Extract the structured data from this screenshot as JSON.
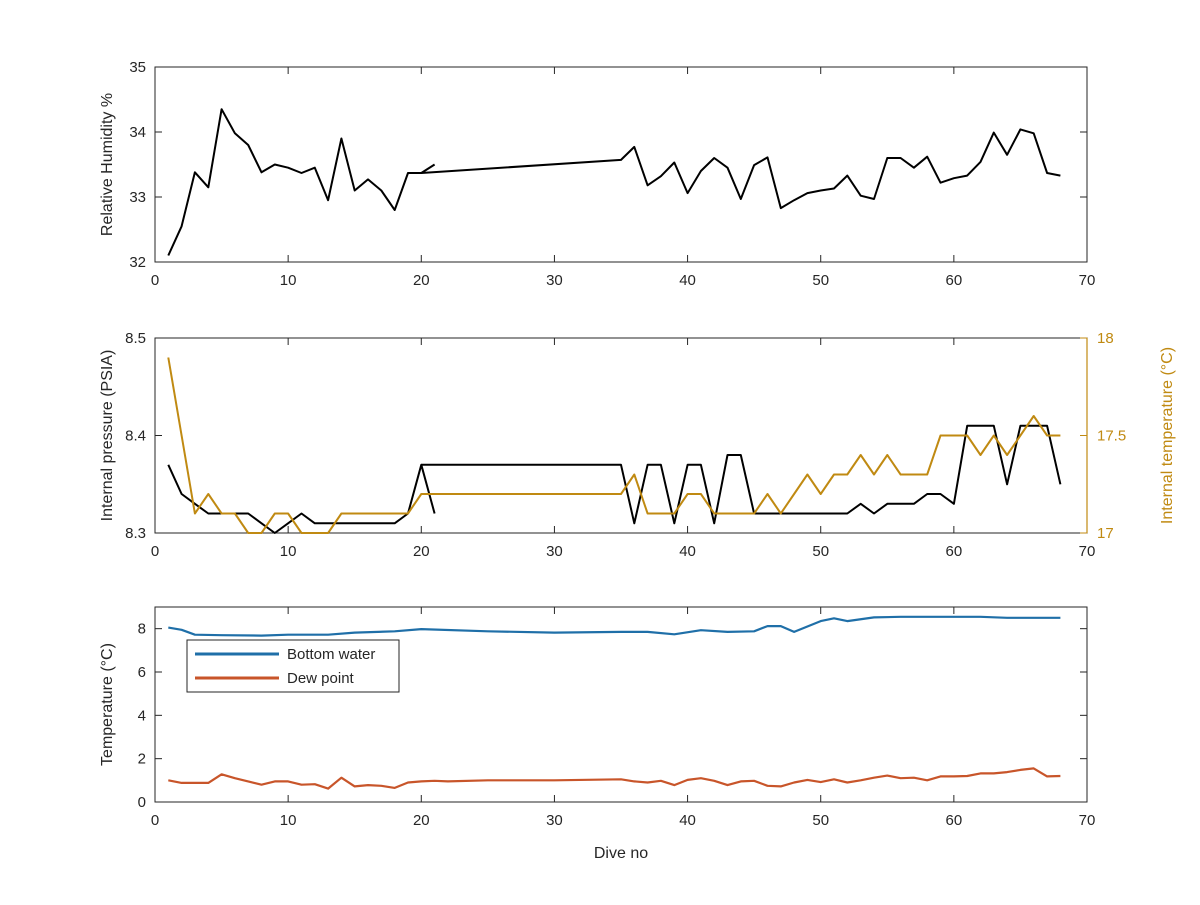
{
  "chart_data": [
    {
      "type": "line",
      "panel": "top",
      "xlabel": "",
      "ylabel": "Relative Humidity %",
      "xlim": [
        0,
        70
      ],
      "ylim": [
        32,
        35
      ],
      "xticks": [
        0,
        10,
        20,
        30,
        40,
        50,
        60,
        70
      ],
      "yticks": [
        32,
        33,
        34,
        35
      ],
      "grid": false,
      "series": [
        {
          "color": "#000000",
          "x": [
            1,
            2,
            3,
            4,
            5,
            6,
            7,
            8,
            9,
            10,
            11,
            12,
            13,
            14,
            15,
            16,
            17,
            18,
            19,
            20,
            21
          ],
          "y": [
            32.1,
            32.55,
            33.38,
            33.15,
            34.35,
            33.98,
            33.8,
            33.38,
            33.5,
            33.45,
            33.37,
            33.45,
            32.95,
            33.9,
            33.1,
            33.27,
            33.1,
            32.8,
            33.37,
            33.37,
            33.5
          ]
        },
        {
          "color": "#000000",
          "x": [
            20,
            35,
            36,
            37,
            38,
            39,
            40,
            41,
            42,
            43,
            44,
            45,
            46,
            47,
            48,
            49,
            50,
            51,
            52,
            53,
            54,
            55,
            56,
            57,
            58,
            59,
            60,
            61,
            62,
            63,
            64,
            65,
            66,
            67,
            68
          ],
          "y": [
            33.37,
            33.57,
            33.77,
            33.18,
            33.32,
            33.53,
            33.06,
            33.4,
            33.6,
            33.45,
            32.97,
            33.49,
            33.61,
            32.83,
            32.95,
            33.06,
            33.1,
            33.13,
            33.33,
            33.02,
            32.97,
            33.6,
            33.6,
            33.45,
            33.62,
            33.22,
            33.29,
            33.33,
            33.54,
            33.99,
            33.65,
            34.04,
            33.98,
            33.37,
            33.33
          ]
        }
      ]
    },
    {
      "type": "line",
      "panel": "middle",
      "xlabel": "",
      "ylabel": "Internal pressure (PSIA)",
      "ylabel_right": "Internal temperature (°C)",
      "xlim": [
        0,
        70
      ],
      "ylim": [
        8.3,
        8.5
      ],
      "ylim_right": [
        17,
        18
      ],
      "xticks": [
        0,
        10,
        20,
        30,
        40,
        50,
        60,
        70
      ],
      "yticks": [
        8.3,
        8.4,
        8.5
      ],
      "yticks_right": [
        17,
        17.5,
        18
      ],
      "grid": false,
      "series": [
        {
          "axis": "left",
          "color": "#000000",
          "x": [
            1,
            2,
            3,
            4,
            5,
            6,
            7,
            8,
            9,
            10,
            11,
            12,
            13,
            14,
            15,
            16,
            17,
            18,
            19,
            20,
            21
          ],
          "y": [
            8.37,
            8.34,
            8.33,
            8.32,
            8.32,
            8.32,
            8.32,
            8.31,
            8.3,
            8.31,
            8.32,
            8.31,
            8.31,
            8.31,
            8.31,
            8.31,
            8.31,
            8.31,
            8.32,
            8.37,
            8.32
          ]
        },
        {
          "axis": "left",
          "color": "#000000",
          "x": [
            20,
            35,
            36,
            37,
            38,
            39,
            40,
            41,
            42,
            43,
            44,
            45,
            46,
            47,
            48,
            49,
            50,
            51,
            52,
            53,
            54,
            55,
            56,
            57,
            58,
            59,
            60,
            61,
            62,
            63,
            64,
            65,
            66,
            67,
            68
          ],
          "y": [
            8.37,
            8.37,
            8.31,
            8.37,
            8.37,
            8.31,
            8.37,
            8.37,
            8.31,
            8.38,
            8.38,
            8.32,
            8.32,
            8.32,
            8.32,
            8.32,
            8.32,
            8.32,
            8.32,
            8.33,
            8.32,
            8.33,
            8.33,
            8.33,
            8.34,
            8.34,
            8.33,
            8.41,
            8.41,
            8.41,
            8.35,
            8.41,
            8.41,
            8.41,
            8.35
          ]
        },
        {
          "axis": "right",
          "color": "#C08A12",
          "x": [
            1,
            2,
            3,
            4,
            5,
            6,
            7,
            8,
            9,
            10,
            11,
            12,
            13,
            14,
            15,
            16,
            17,
            18,
            19,
            20,
            21,
            35,
            36,
            37,
            38,
            39,
            40,
            41,
            42,
            43,
            44,
            45,
            46,
            47,
            48,
            49,
            50,
            51,
            52,
            53,
            54,
            55,
            56,
            57,
            58,
            59,
            60,
            61,
            62,
            63,
            64,
            65,
            66,
            67,
            68
          ],
          "y": [
            17.9,
            17.5,
            17.1,
            17.2,
            17.1,
            17.1,
            17.0,
            17.0,
            17.1,
            17.1,
            17.0,
            17.0,
            17.0,
            17.1,
            17.1,
            17.1,
            17.1,
            17.1,
            17.1,
            17.2,
            17.2,
            17.2,
            17.3,
            17.1,
            17.1,
            17.1,
            17.2,
            17.2,
            17.1,
            17.1,
            17.1,
            17.1,
            17.2,
            17.1,
            17.2,
            17.3,
            17.2,
            17.3,
            17.3,
            17.4,
            17.3,
            17.4,
            17.3,
            17.3,
            17.3,
            17.5,
            17.5,
            17.5,
            17.4,
            17.5,
            17.4,
            17.5,
            17.6,
            17.5,
            17.5
          ]
        }
      ]
    },
    {
      "type": "line",
      "panel": "bottom",
      "xlabel": "Dive no",
      "ylabel": "Temperature (°C)",
      "xlim": [
        0,
        70
      ],
      "ylim": [
        0,
        9
      ],
      "xticks": [
        0,
        10,
        20,
        30,
        40,
        50,
        60,
        70
      ],
      "yticks": [
        0,
        2,
        4,
        6,
        8
      ],
      "grid": false,
      "legend_position": "upper-left",
      "series": [
        {
          "name": "Bottom water",
          "color": "#1F6FA8",
          "x": [
            1,
            2,
            3,
            5,
            8,
            10,
            13,
            15,
            18,
            20,
            25,
            30,
            35,
            37,
            39,
            41,
            43,
            45,
            46,
            47,
            48,
            50,
            51,
            52,
            54,
            56,
            58,
            60,
            62,
            64,
            66,
            68
          ],
          "y": [
            8.05,
            7.95,
            7.72,
            7.7,
            7.68,
            7.72,
            7.72,
            7.82,
            7.88,
            7.98,
            7.88,
            7.82,
            7.85,
            7.85,
            7.74,
            7.93,
            7.85,
            7.88,
            8.12,
            8.12,
            7.85,
            8.35,
            8.48,
            8.35,
            8.52,
            8.55,
            8.55,
            8.55,
            8.55,
            8.5,
            8.5,
            8.5
          ]
        },
        {
          "name": "Dew point",
          "color": "#C8552A",
          "x": [
            1,
            2,
            3,
            4,
            5,
            6,
            7,
            8,
            9,
            10,
            11,
            12,
            13,
            14,
            15,
            16,
            17,
            18,
            19,
            20,
            21,
            22,
            25,
            30,
            35,
            36,
            37,
            38,
            39,
            40,
            41,
            42,
            43,
            44,
            45,
            46,
            47,
            48,
            49,
            50,
            51,
            52,
            53,
            54,
            55,
            56,
            57,
            58,
            59,
            60,
            61,
            62,
            63,
            64,
            65,
            66,
            67,
            68
          ],
          "y": [
            1.0,
            0.88,
            0.88,
            0.88,
            1.28,
            1.1,
            0.95,
            0.8,
            0.95,
            0.95,
            0.8,
            0.82,
            0.62,
            1.12,
            0.72,
            0.78,
            0.75,
            0.65,
            0.9,
            0.95,
            0.98,
            0.95,
            1.0,
            1.0,
            1.05,
            0.95,
            0.9,
            0.98,
            0.78,
            1.02,
            1.1,
            0.98,
            0.78,
            0.95,
            0.98,
            0.75,
            0.72,
            0.9,
            1.02,
            0.92,
            1.05,
            0.9,
            1.0,
            1.12,
            1.22,
            1.1,
            1.12,
            1.0,
            1.18,
            1.18,
            1.2,
            1.32,
            1.32,
            1.38,
            1.48,
            1.55,
            1.18,
            1.2
          ]
        }
      ]
    }
  ]
}
